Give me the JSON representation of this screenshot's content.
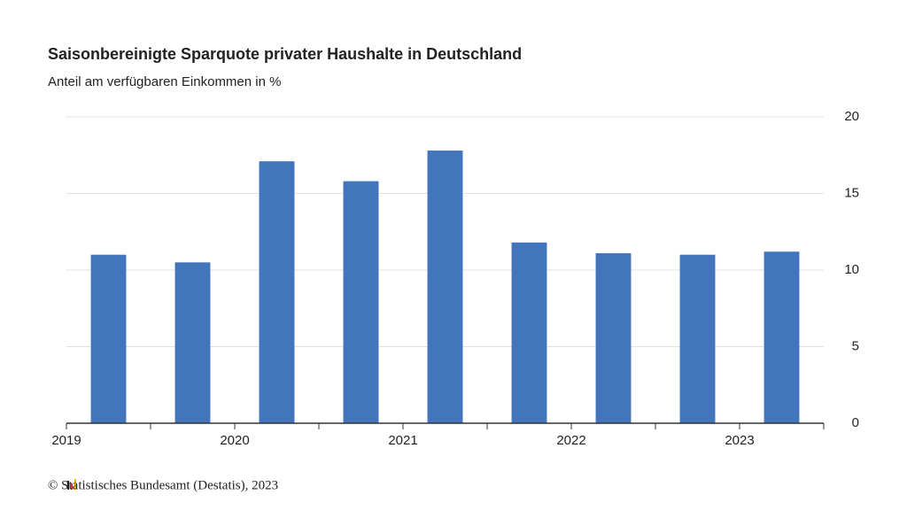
{
  "chart_data": {
    "type": "bar",
    "title": "Saisonbereinigte Sparquote privater Haushalte in Deutschland",
    "subtitle": "Anteil am verfügbaren Einkommen in %",
    "source": "© Statistisches Bundesamt (Destatis), 2023",
    "x": [
      2019.25,
      2019.75,
      2020.25,
      2020.75,
      2021.25,
      2021.75,
      2022.25,
      2022.75,
      2023.25
    ],
    "values": [
      11.0,
      10.5,
      17.1,
      15.8,
      17.8,
      11.8,
      11.1,
      11.0,
      11.2
    ],
    "color": "#4275bb",
    "xlim": [
      2019,
      2023.5
    ],
    "xticks": [
      2019,
      2020,
      2021,
      2022,
      2023
    ],
    "xminor_ticks": [
      2019.5,
      2020.5,
      2021.5,
      2022.5,
      2023.5
    ],
    "ylim": [
      0,
      20
    ],
    "yticks": [
      0,
      5,
      10,
      15,
      20
    ],
    "grid": true
  }
}
